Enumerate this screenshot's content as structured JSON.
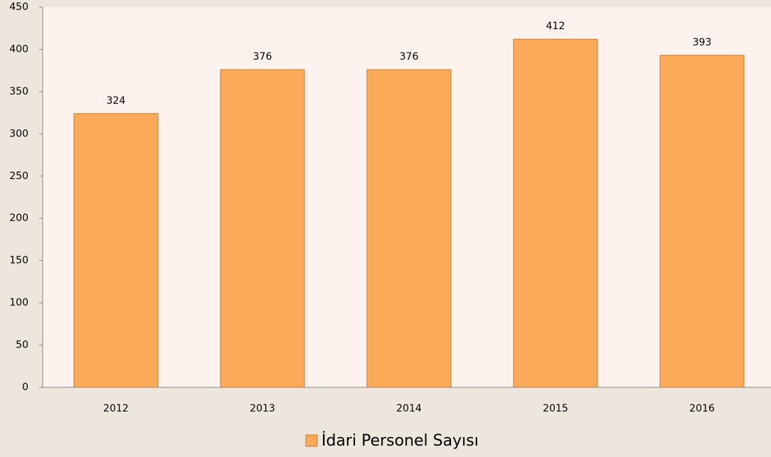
{
  "chart_data": {
    "type": "bar",
    "categories": [
      "2012",
      "2013",
      "2014",
      "2015",
      "2016"
    ],
    "series": [
      {
        "name": "İdari Personel Sayısı",
        "color": "#fbaa5a",
        "values": [
          324,
          376,
          376,
          412,
          393
        ]
      }
    ],
    "ylim": [
      0,
      450
    ],
    "yticks": [
      0,
      50,
      100,
      150,
      200,
      250,
      300,
      350,
      400,
      450
    ],
    "grid": false,
    "legend": "bottom",
    "data_labels": true
  }
}
